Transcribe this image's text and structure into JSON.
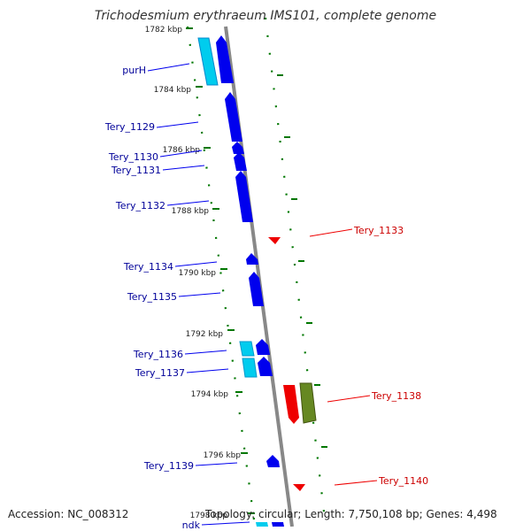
{
  "title": "Trichodesmium erythraeum IMS101, complete genome",
  "footer": {
    "accession": "Accession: NC_008312",
    "summary": "Topology: circular; Length: 7,750,108 bp; Genes: 4,498"
  },
  "colors": {
    "forward_gene": "#0000ee",
    "forward_gene_light": "#00ccee",
    "reverse_gene": "#ee0000",
    "reverse_gene_olive": "#668822",
    "label_left": "#000099",
    "label_right": "#cc0000",
    "tick": "#007700",
    "backbone": "#888888"
  },
  "kbp_marks": [
    {
      "label": "1782 kbp"
    },
    {
      "label": "1784 kbp"
    },
    {
      "label": "1786 kbp"
    },
    {
      "label": "1788 kbp"
    },
    {
      "label": "1790 kbp"
    },
    {
      "label": "1792 kbp"
    },
    {
      "label": "1794 kbp"
    },
    {
      "label": "1796 kbp"
    },
    {
      "label": "1798 kbp"
    }
  ],
  "genes_left": [
    {
      "name": "purH"
    },
    {
      "name": "Tery_1129"
    },
    {
      "name": "Tery_1130"
    },
    {
      "name": "Tery_1131"
    },
    {
      "name": "Tery_1132"
    },
    {
      "name": "Tery_1134"
    },
    {
      "name": "Tery_1135"
    },
    {
      "name": "Tery_1136"
    },
    {
      "name": "Tery_1137"
    },
    {
      "name": "Tery_1139"
    },
    {
      "name": "ndk"
    }
  ],
  "genes_right": [
    {
      "name": "Tery_1133"
    },
    {
      "name": "Tery_1138"
    },
    {
      "name": "Tery_1140"
    }
  ]
}
